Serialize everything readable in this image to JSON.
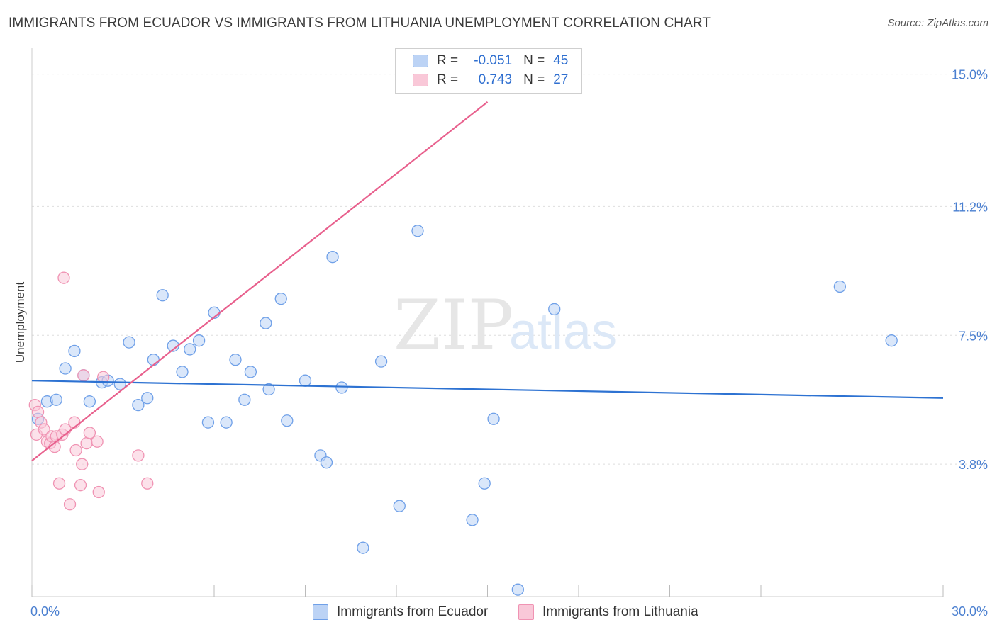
{
  "title": "IMMIGRANTS FROM ECUADOR VS IMMIGRANTS FROM LITHUANIA UNEMPLOYMENT CORRELATION CHART",
  "source": "Source: ZipAtlas.com",
  "watermark": {
    "zip": "ZIP",
    "atlas": "atlas"
  },
  "legend": {
    "rows": [
      {
        "r_label": "R =",
        "r_value": "-0.051",
        "n_label": "N =",
        "n_value": "45",
        "color": "#6fa0e8",
        "fill": "#bcd3f5"
      },
      {
        "r_label": "R =",
        "r_value": "0.743",
        "n_label": "N =",
        "n_value": "27",
        "color": "#f093b3",
        "fill": "#f9c8d8"
      }
    ]
  },
  "bottom_legend": [
    "Immigrants from Ecuador",
    "Immigrants from Lithuania"
  ],
  "chart_data": {
    "type": "scatter",
    "xlabel": "",
    "ylabel": "Unemployment",
    "xlim": [
      0,
      30
    ],
    "ylim": [
      0,
      15.5
    ],
    "x_tick_labels": [
      "0.0%",
      "30.0%"
    ],
    "y_ticks": [
      3.8,
      7.5,
      11.2,
      15.0
    ],
    "y_tick_labels": [
      "3.8%",
      "7.5%",
      "11.2%",
      "15.0%"
    ],
    "grid": true,
    "series": [
      {
        "name": "Immigrants from Ecuador",
        "color": "#6fa0e8",
        "fill": "#bcd3f5",
        "trend": {
          "x": [
            0,
            30
          ],
          "y": [
            6.2,
            5.7
          ],
          "color": "#2d72d2"
        },
        "points": [
          [
            0.2,
            5.1
          ],
          [
            0.5,
            5.6
          ],
          [
            0.8,
            5.65
          ],
          [
            1.1,
            6.55
          ],
          [
            1.4,
            7.05
          ],
          [
            1.7,
            6.35
          ],
          [
            1.9,
            5.6
          ],
          [
            2.3,
            6.15
          ],
          [
            2.5,
            6.2
          ],
          [
            2.9,
            6.1
          ],
          [
            3.2,
            7.3
          ],
          [
            3.5,
            5.5
          ],
          [
            3.8,
            5.7
          ],
          [
            4.0,
            6.8
          ],
          [
            4.3,
            8.65
          ],
          [
            4.65,
            7.2
          ],
          [
            4.95,
            6.45
          ],
          [
            5.2,
            7.1
          ],
          [
            5.5,
            7.35
          ],
          [
            5.8,
            5.0
          ],
          [
            6.0,
            8.15
          ],
          [
            6.4,
            5.0
          ],
          [
            6.7,
            6.8
          ],
          [
            7.0,
            5.65
          ],
          [
            7.2,
            6.45
          ],
          [
            7.7,
            7.85
          ],
          [
            7.8,
            5.95
          ],
          [
            8.2,
            8.55
          ],
          [
            8.4,
            5.05
          ],
          [
            9.0,
            6.2
          ],
          [
            9.5,
            4.05
          ],
          [
            9.7,
            3.85
          ],
          [
            9.9,
            9.75
          ],
          [
            10.2,
            6.0
          ],
          [
            10.9,
            1.4
          ],
          [
            11.5,
            6.75
          ],
          [
            12.1,
            2.6
          ],
          [
            12.7,
            10.5
          ],
          [
            14.5,
            2.2
          ],
          [
            14.9,
            3.25
          ],
          [
            15.2,
            5.1
          ],
          [
            16.0,
            0.2
          ],
          [
            17.2,
            8.25
          ],
          [
            26.6,
            8.9
          ],
          [
            28.3,
            7.35
          ]
        ]
      },
      {
        "name": "Immigrants from Lithuania",
        "color": "#f093b3",
        "fill": "#f9c8d8",
        "trend": {
          "x": [
            0,
            15
          ],
          "y": [
            3.9,
            14.2
          ],
          "color": "#e8608d"
        },
        "points": [
          [
            0.1,
            5.5
          ],
          [
            0.15,
            4.65
          ],
          [
            0.2,
            5.3
          ],
          [
            0.3,
            5.0
          ],
          [
            0.4,
            4.8
          ],
          [
            0.5,
            4.45
          ],
          [
            0.6,
            4.4
          ],
          [
            0.65,
            4.6
          ],
          [
            0.75,
            4.3
          ],
          [
            0.8,
            4.6
          ],
          [
            0.9,
            3.25
          ],
          [
            1.0,
            4.65
          ],
          [
            1.05,
            9.15
          ],
          [
            1.1,
            4.8
          ],
          [
            1.25,
            2.65
          ],
          [
            1.4,
            5.0
          ],
          [
            1.45,
            4.2
          ],
          [
            1.6,
            3.2
          ],
          [
            1.65,
            3.8
          ],
          [
            1.7,
            6.35
          ],
          [
            1.8,
            4.4
          ],
          [
            1.9,
            4.7
          ],
          [
            2.15,
            4.45
          ],
          [
            2.2,
            3.0
          ],
          [
            2.35,
            6.3
          ],
          [
            3.5,
            4.05
          ],
          [
            3.8,
            3.25
          ]
        ]
      }
    ]
  }
}
